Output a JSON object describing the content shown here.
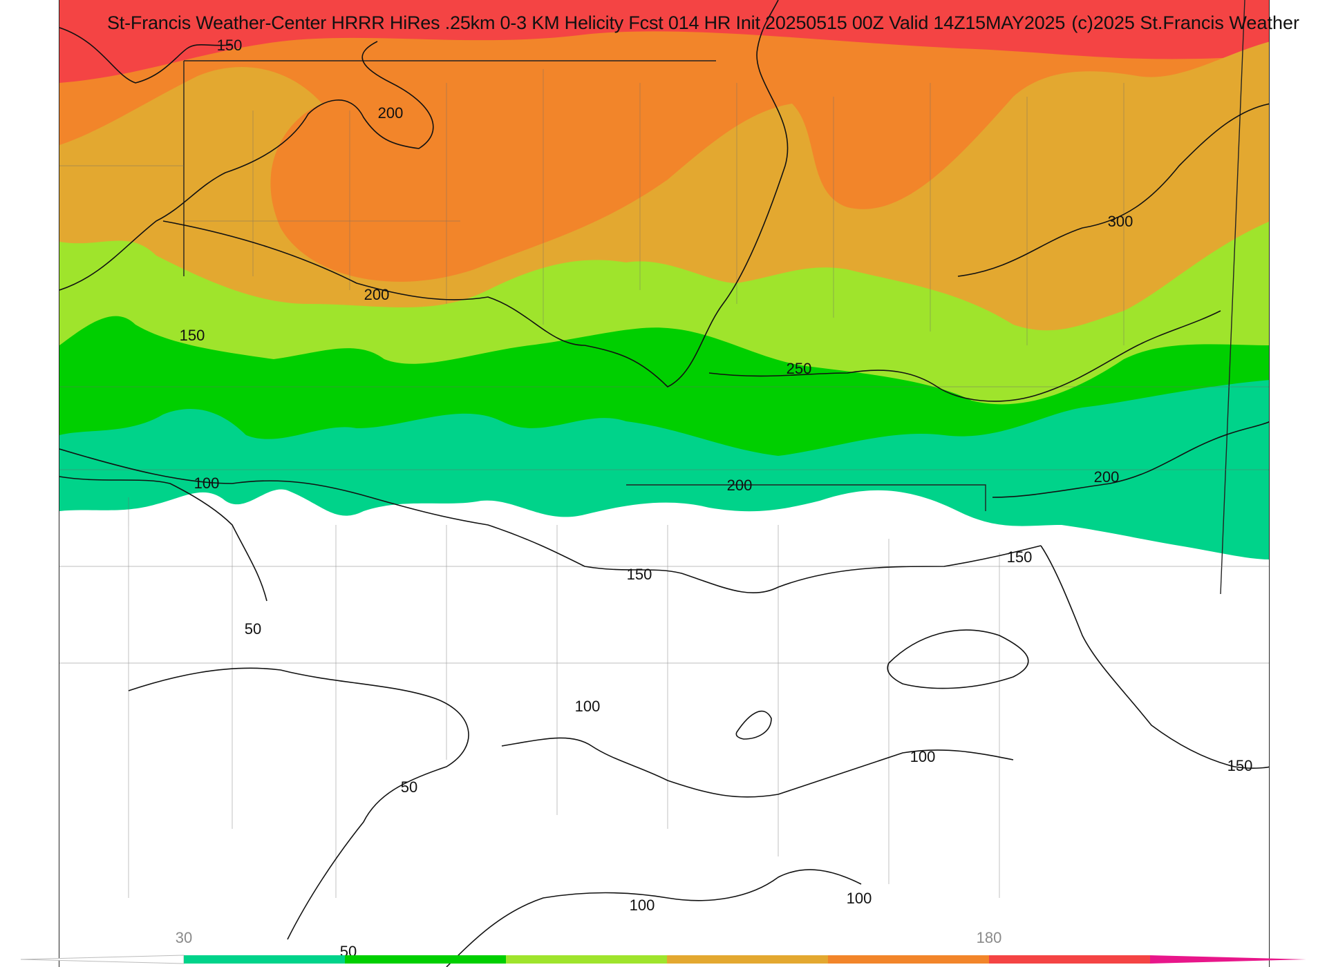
{
  "header": {
    "title": "St-Francis Weather-Center HRRR HiRes .25km 0-3 KM Helicity Fcst 014 HR Init 20250515 00Z  Valid 14Z15MAY2025",
    "credit": "(c)2025 St.Francis Weather"
  },
  "legend": {
    "colors": [
      "#00d38a",
      "#00cf00",
      "#9fe42c",
      "#e3a830",
      "#f2852a",
      "#f44444",
      "#e8168a"
    ],
    "tick_labels": [
      "30",
      "180"
    ]
  },
  "contour_labels": [
    "150",
    "200",
    "200",
    "150",
    "250",
    "200",
    "200",
    "300",
    "100",
    "150",
    "150",
    "50",
    "100",
    "100",
    "50",
    "150",
    "100",
    "100",
    "50"
  ]
}
